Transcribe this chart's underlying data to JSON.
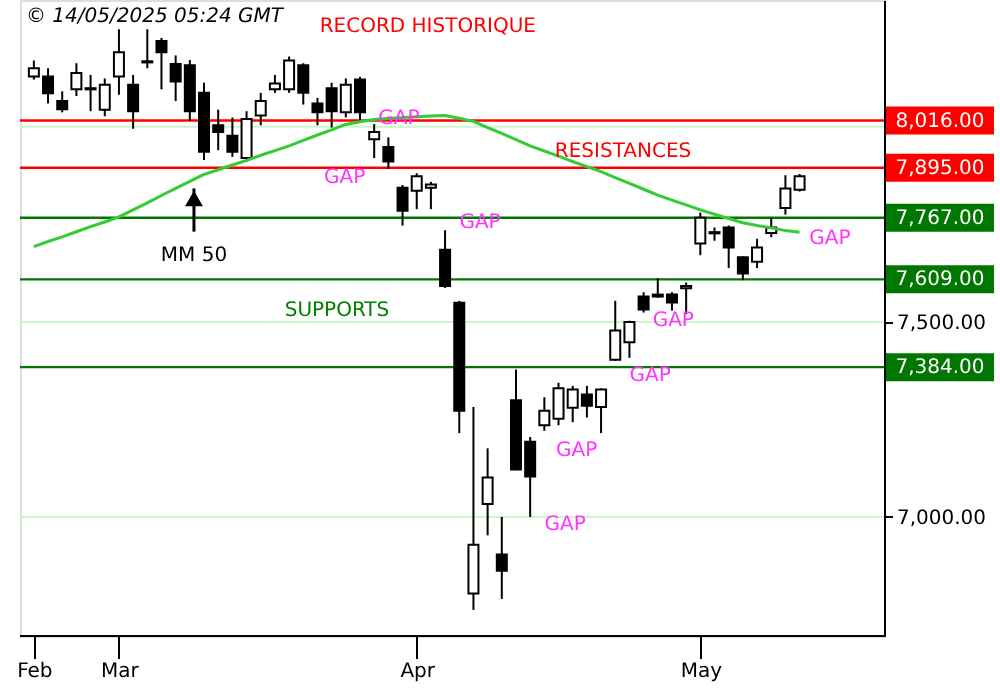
{
  "chart_data": {
    "type": "candlestick",
    "title": "© 14/05/2025 05:24 GMT",
    "categories": [
      "Feb",
      null,
      null,
      null,
      null,
      null,
      "Mar",
      null,
      null,
      null,
      null,
      null,
      null,
      null,
      null,
      null,
      null,
      null,
      null,
      null,
      null,
      null,
      null,
      null,
      null,
      null,
      null,
      "Apr",
      null,
      null,
      null,
      null,
      null,
      null,
      null,
      null,
      null,
      null,
      null,
      null,
      null,
      null,
      null,
      null,
      null,
      null,
      null,
      "May",
      null,
      null,
      null,
      null,
      null,
      null,
      null
    ],
    "ohlc": [
      [
        8129,
        8170,
        8121,
        8150
      ],
      [
        8129,
        8150,
        8060,
        8086
      ],
      [
        8066,
        8091,
        8037,
        8045
      ],
      [
        8096,
        8163,
        8079,
        8138
      ],
      [
        8099,
        8133,
        8040,
        8096
      ],
      [
        8044,
        8124,
        8027,
        8108
      ],
      [
        8129,
        8250,
        8082,
        8191
      ],
      [
        8108,
        8133,
        7995,
        8040
      ],
      [
        8168,
        8250,
        8150,
        8165
      ],
      [
        8220,
        8228,
        8096,
        8191
      ],
      [
        8161,
        8183,
        8066,
        8116
      ],
      [
        8158,
        8171,
        8015,
        8040
      ],
      [
        8087,
        8113,
        7915,
        7936
      ],
      [
        8004,
        8044,
        7940,
        7987
      ],
      [
        7977,
        8024,
        7923,
        7936
      ],
      [
        7920,
        8040,
        7911,
        8020
      ],
      [
        8029,
        8087,
        8004,
        8066
      ],
      [
        8096,
        8133,
        8087,
        8111
      ],
      [
        8096,
        8180,
        8087,
        8170
      ],
      [
        8158,
        8163,
        8057,
        8087
      ],
      [
        8060,
        8074,
        8004,
        8037
      ],
      [
        8099,
        8113,
        7998,
        8040
      ],
      [
        8037,
        8124,
        8024,
        8108
      ],
      [
        8121,
        8128,
        8015,
        8037
      ],
      [
        7968,
        8007,
        7920,
        7987
      ],
      [
        7948,
        7973,
        7893,
        7911
      ],
      [
        7844,
        7851,
        7747,
        7785
      ],
      [
        7836,
        7881,
        7789,
        7873
      ],
      [
        7844,
        7859,
        7789,
        7852
      ],
      [
        7685,
        7735,
        7587,
        7592
      ],
      [
        7549,
        7554,
        7215,
        7272
      ],
      [
        6804,
        7282,
        6762,
        6929
      ],
      [
        7033,
        7176,
        6953,
        7101
      ],
      [
        6904,
        7000,
        6790,
        6862
      ],
      [
        7299,
        7378,
        7120,
        7122
      ],
      [
        7193,
        7205,
        7000,
        7104
      ],
      [
        7235,
        7307,
        7221,
        7272
      ],
      [
        7252,
        7344,
        7235,
        7330
      ],
      [
        7280,
        7336,
        7243,
        7327
      ],
      [
        7314,
        7336,
        7255,
        7285
      ],
      [
        7282,
        7330,
        7215,
        7327
      ],
      [
        7403,
        7554,
        7400,
        7478
      ],
      [
        7448,
        7503,
        7408,
        7500
      ],
      [
        7565,
        7576,
        7524,
        7532
      ],
      [
        7570,
        7612,
        7562,
        7565
      ],
      [
        7570,
        7576,
        7529,
        7550
      ],
      [
        7586,
        7601,
        7520,
        7592
      ],
      [
        7701,
        7780,
        7671,
        7767
      ],
      [
        7727,
        7742,
        7708,
        7730
      ],
      [
        7742,
        7747,
        7638,
        7691
      ],
      [
        7666,
        7668,
        7607,
        7624
      ],
      [
        7654,
        7713,
        7638,
        7691
      ],
      [
        7728,
        7767,
        7717,
        7742
      ],
      [
        7792,
        7876,
        7775,
        7842
      ],
      [
        7839,
        7879,
        7834,
        7873
      ]
    ],
    "series": [
      {
        "type": "line",
        "color": "#33cc33",
        "values": [
          7693,
          7706,
          7718,
          7731,
          7744,
          7756,
          7769,
          7787,
          7805,
          7824,
          7842,
          7860,
          7878,
          7890,
          7902,
          7914,
          7927,
          7939,
          7951,
          7965,
          7979,
          7992,
          8006,
          8013,
          8019,
          8021,
          8024,
          8026,
          8028,
          8029,
          8022,
          8014,
          7998,
          7983,
          7967,
          7951,
          7938,
          7925,
          7911,
          7898,
          7885,
          7870,
          7855,
          7840,
          7825,
          7812,
          7800,
          7787,
          7776,
          7765,
          7754,
          7747,
          7741,
          7734,
          7730
        ]
      }
    ],
    "ylim": [
      6695,
      8325
    ],
    "yticks": [
      {
        "value": 7000,
        "label": "7,000.00"
      },
      {
        "value": 7500,
        "label": "7,500.00"
      },
      {
        "value": 8000,
        "label": null
      }
    ],
    "grid": "y",
    "ref_lines": [
      {
        "axis": "y",
        "value": 8016,
        "label": "8,016.00",
        "color": "#ff0000"
      },
      {
        "axis": "y",
        "value": 7895,
        "label": "7,895.00",
        "color": "#ff0000"
      },
      {
        "axis": "y",
        "value": 7767,
        "label": "7,767.00",
        "color": "#007700"
      },
      {
        "axis": "y",
        "value": 7609,
        "label": "7,609.00",
        "color": "#007700"
      },
      {
        "axis": "y",
        "value": 7384,
        "label": "7,384.00",
        "color": "#007700"
      }
    ],
    "annotations": [
      "RECORD HISTORIQUE",
      "RESISTANCES",
      "SUPPORTS",
      {
        "text": "MM 50",
        "y": 7842
      },
      "GAP",
      "GAP",
      "GAP",
      "GAP",
      "GAP",
      "GAP",
      "GAP",
      "GAP"
    ]
  }
}
